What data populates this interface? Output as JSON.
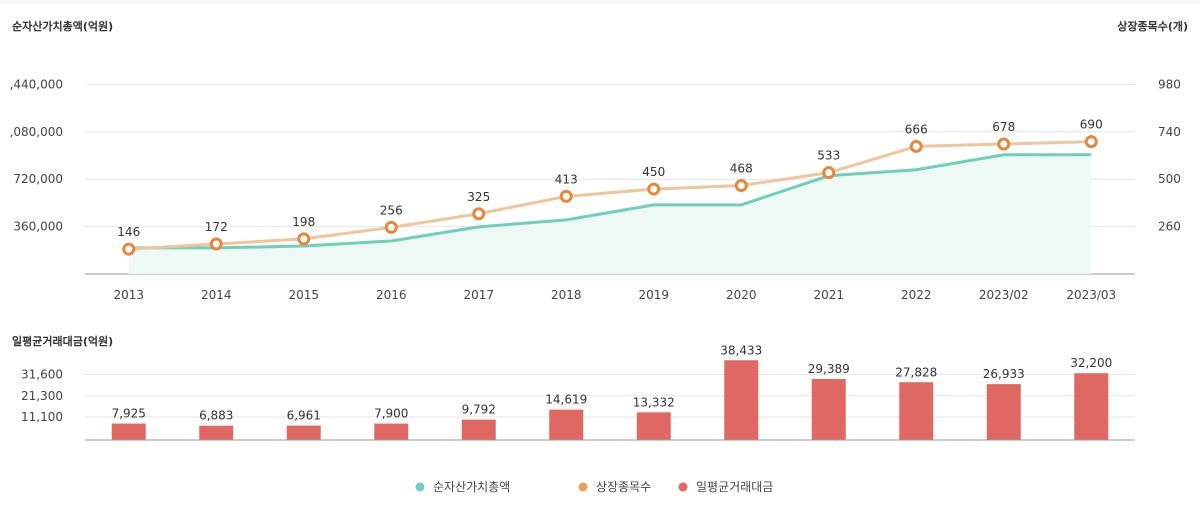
{
  "chart_data": [
    {
      "type": "line",
      "categories": [
        "2013",
        "2014",
        "2015",
        "2016",
        "2017",
        "2018",
        "2019",
        "2020",
        "2021",
        "2022",
        "2023/02",
        "2023/03"
      ],
      "left_axis_title": "순자산가치총액(억원)",
      "right_axis_title": "상장종목수(개)",
      "left_ticks": [
        ",440,000",
        ",080,000",
        "720,000",
        "360,000"
      ],
      "left_tick_values": [
        1440000,
        1080000,
        720000,
        360000
      ],
      "left_ylim": [
        0,
        1800000
      ],
      "right_ticks": [
        "980",
        "740",
        "500",
        "260"
      ],
      "right_tick_values": [
        980,
        740,
        500,
        260
      ],
      "right_ylim": [
        20,
        1220
      ],
      "grid": true,
      "series": [
        {
          "name": "순자산가치총액",
          "axis": "left",
          "kind": "area",
          "color": "#6fcfb8",
          "values": [
            198000,
            198000,
            213000,
            251000,
            358000,
            411000,
            525000,
            525000,
            746000,
            792000,
            906000,
            906000
          ]
        },
        {
          "name": "상장종목수",
          "axis": "right",
          "kind": "line-markers",
          "color": "#f0c49c",
          "marker_color": "#e8873a",
          "values": [
            146,
            172,
            198,
            256,
            325,
            413,
            450,
            468,
            533,
            666,
            678,
            690
          ],
          "labels": [
            "146",
            "172",
            "198",
            "256",
            "325",
            "413",
            "450",
            "468",
            "533",
            "666",
            "678",
            "690"
          ]
        }
      ]
    },
    {
      "type": "bar",
      "title": "일평균거래대금(억원)",
      "categories": [
        "2013",
        "2014",
        "2015",
        "2016",
        "2017",
        "2018",
        "2019",
        "2020",
        "2021",
        "2022",
        "2023/02",
        "2023/03"
      ],
      "ticks": [
        "31,600",
        "21,300",
        "11,100"
      ],
      "tick_values": [
        31600,
        21300,
        11100
      ],
      "ylim": [
        0,
        40000
      ],
      "grid": true,
      "series": [
        {
          "name": "일평균거래대금",
          "color": "#e06862",
          "values": [
            7925,
            6883,
            6961,
            7900,
            9792,
            14619,
            13332,
            38433,
            29389,
            27828,
            26933,
            32200
          ],
          "labels": [
            "7,925",
            "6,883",
            "6,961",
            "7,900",
            "9,792",
            "14,619",
            "13,332",
            "38,433",
            "29,389",
            "27,828",
            "26,933",
            "32,200"
          ]
        }
      ]
    }
  ],
  "legend": [
    {
      "label": "순자산가치총액",
      "color": "#6fcfb8"
    },
    {
      "label": "상장종목수",
      "color": "#e8a05a"
    },
    {
      "label": "일평균거래대금",
      "color": "#e06862"
    }
  ]
}
